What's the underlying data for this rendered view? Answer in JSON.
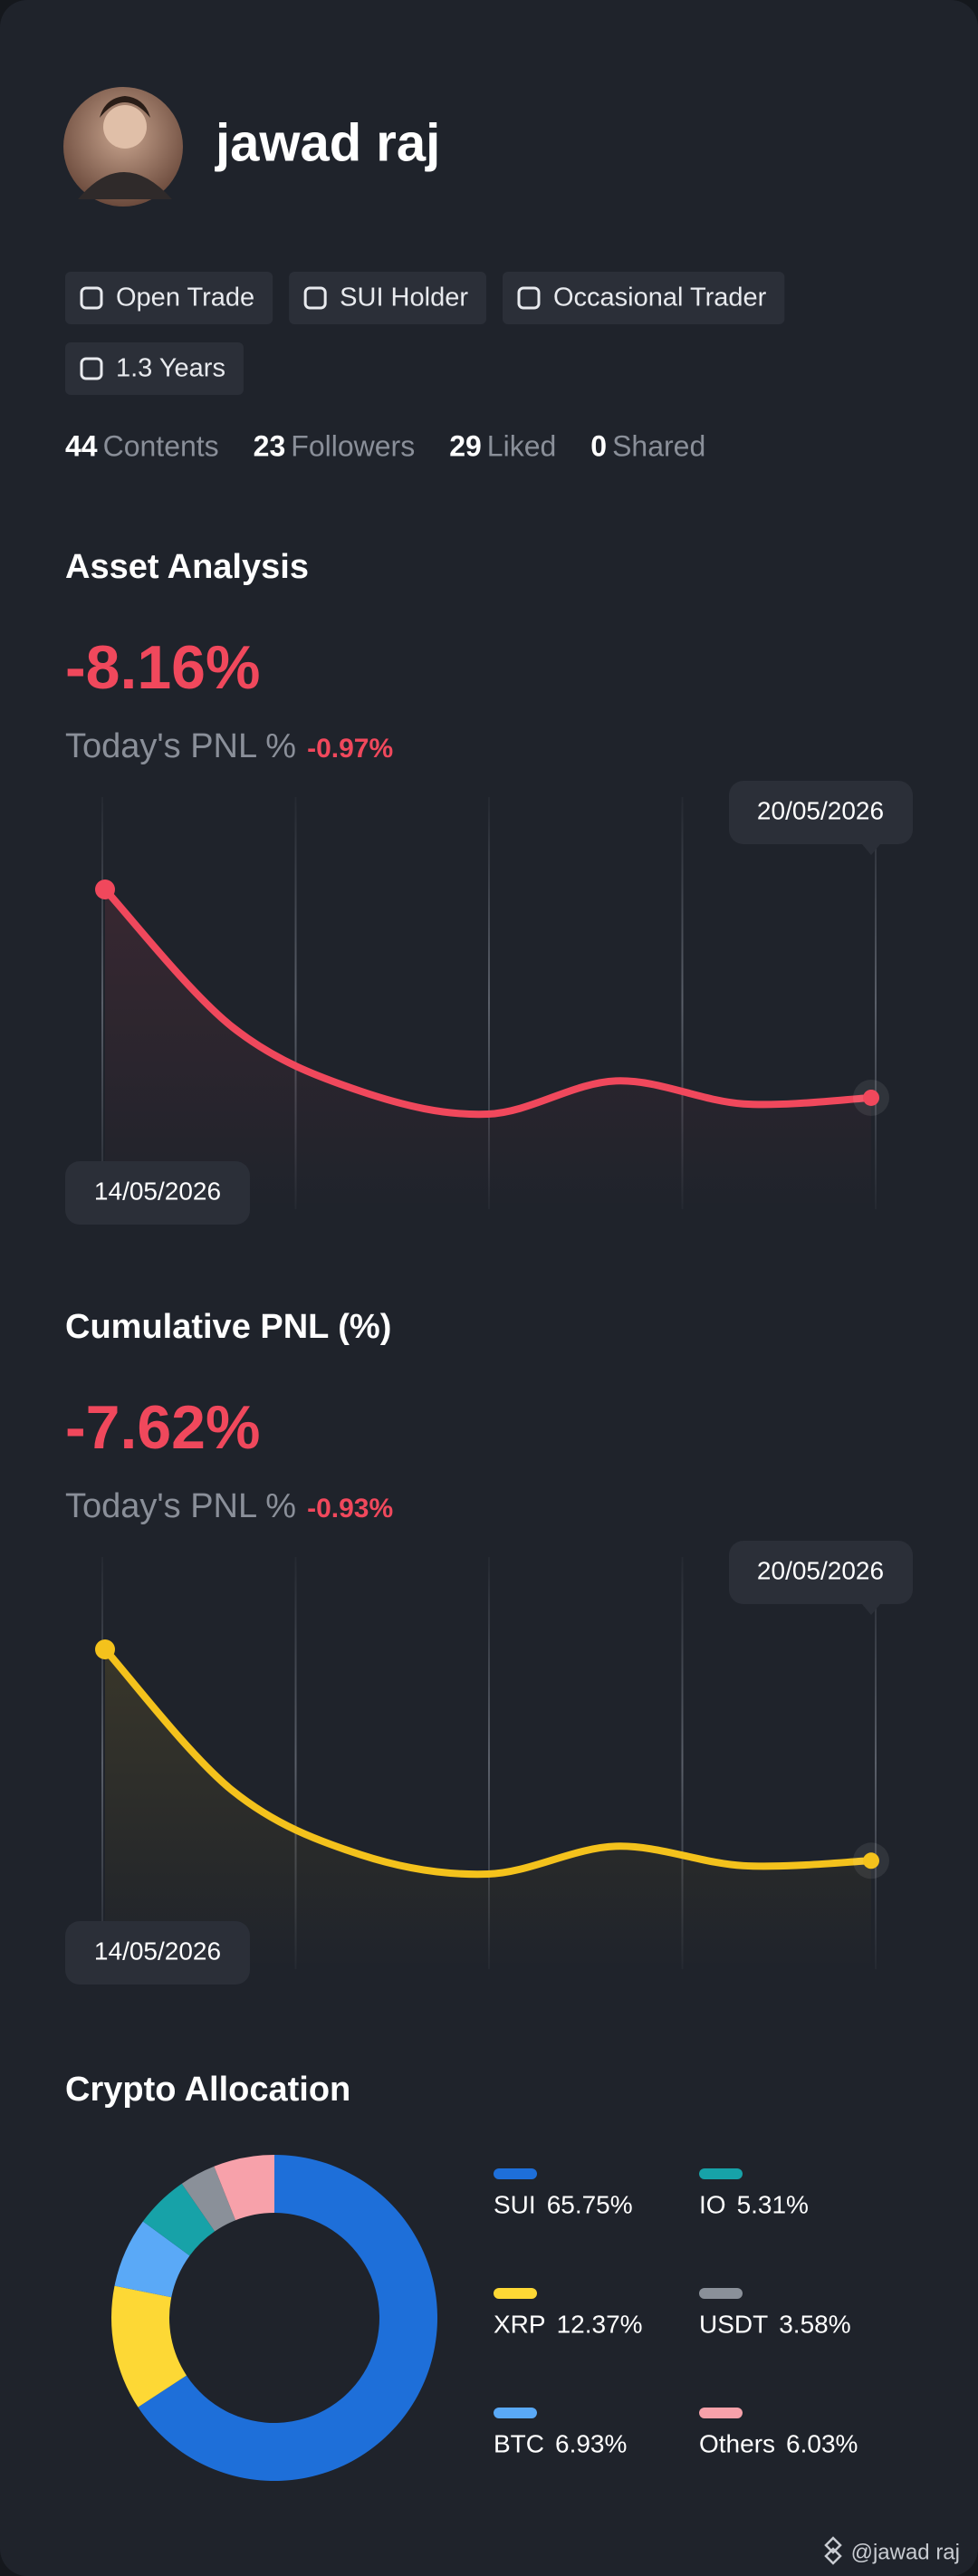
{
  "profile": {
    "name": "jawad raj",
    "tags": [
      "Open Trade",
      "SUI Holder",
      "Occasional Trader",
      "1.3 Years"
    ],
    "stats": [
      {
        "value": 44,
        "label": "Contents"
      },
      {
        "value": 23,
        "label": "Followers"
      },
      {
        "value": 29,
        "label": "Liked"
      },
      {
        "value": 0,
        "label": "Shared"
      }
    ]
  },
  "chart_data": [
    {
      "type": "line",
      "title": "Asset Analysis",
      "headline": "-8.16%",
      "subtitle_label": "Today's PNL %",
      "subtitle_value": "-0.97%",
      "categories": [
        "14/05/2026",
        null,
        null,
        null,
        null,
        null,
        "20/05/2026"
      ],
      "values": [
        0,
        -5.4,
        -7.9,
        -8.8,
        -7.5,
        -8.4,
        -8.16
      ],
      "color": "#f0485c"
    },
    {
      "type": "line",
      "title": "Cumulative PNL (%)",
      "headline": "-7.62%",
      "subtitle_label": "Today's PNL %",
      "subtitle_value": "-0.93%",
      "categories": [
        "14/05/2026",
        null,
        null,
        null,
        null,
        null,
        "20/05/2026"
      ],
      "values": [
        0,
        -5.1,
        -7.4,
        -8.1,
        -7.1,
        -7.8,
        -7.62
      ],
      "color": "#f4c21c"
    },
    {
      "type": "donut",
      "title": "Crypto Allocation",
      "series": [
        {
          "name": "SUI",
          "color": "#1e6fd9",
          "values": [
            65.75
          ],
          "value_labels": [
            "65.75%"
          ]
        },
        {
          "name": "XRP",
          "color": "#fdd835",
          "values": [
            12.37
          ],
          "value_labels": [
            "12.37%"
          ]
        },
        {
          "name": "BTC",
          "color": "#5aa9f7",
          "values": [
            6.93
          ],
          "value_labels": [
            "6.93%"
          ]
        },
        {
          "name": "IO",
          "color": "#17a2a8",
          "values": [
            5.31
          ],
          "value_labels": [
            "5.31%"
          ]
        },
        {
          "name": "USDT",
          "color": "#8a9099",
          "values": [
            3.58
          ],
          "value_labels": [
            "3.58%"
          ]
        },
        {
          "name": "Others",
          "color": "#f7a1aa",
          "values": [
            6.03
          ],
          "value_labels": [
            "6.03%"
          ]
        }
      ]
    }
  ],
  "watermark": "@jawad raj"
}
